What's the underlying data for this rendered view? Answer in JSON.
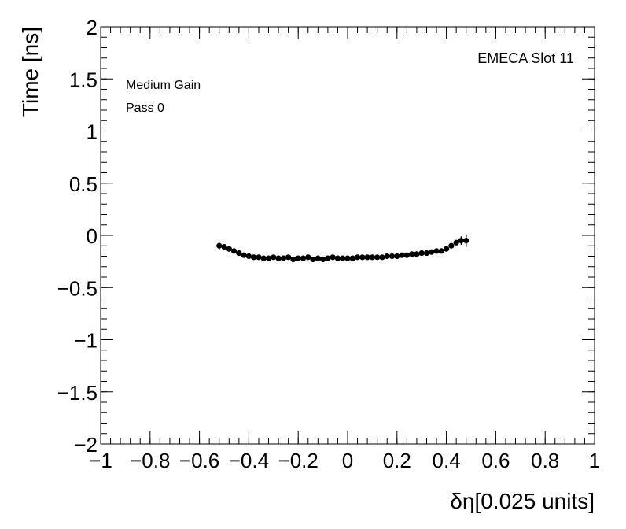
{
  "chart_data": {
    "type": "scatter",
    "title": "",
    "xlabel": "δη[0.025 units]",
    "ylabel": "Time [ns]",
    "xlim": [
      -1,
      1
    ],
    "ylim": [
      -2,
      2
    ],
    "x_major_ticks": [
      -1,
      -0.8,
      -0.6,
      -0.4,
      -0.2,
      0,
      0.2,
      0.4,
      0.6,
      0.8,
      1
    ],
    "x_tick_labels": [
      "−1",
      "−0.8",
      "−0.6",
      "−0.4",
      "−0.2",
      "0",
      "0.2",
      "0.4",
      "0.6",
      "0.8",
      "1"
    ],
    "y_major_ticks": [
      -2,
      -1.5,
      -1,
      -0.5,
      0,
      0.5,
      1,
      1.5,
      2
    ],
    "y_tick_labels": [
      "−2",
      "−1.5",
      "−1",
      "−0.5",
      "0",
      "0.5",
      "1",
      "1.5",
      "2"
    ],
    "x_minor_step": 0.04,
    "y_minor_step": 0.1,
    "annotations": [
      "Medium Gain",
      "Pass 0",
      "EMECA Slot 11"
    ],
    "marker_color": "#000000",
    "grid": false,
    "series": [
      {
        "x": [
          -0.52,
          -0.5,
          -0.48,
          -0.46,
          -0.44,
          -0.42,
          -0.4,
          -0.38,
          -0.36,
          -0.34,
          -0.32,
          -0.3,
          -0.28,
          -0.26,
          -0.24,
          -0.22,
          -0.2,
          -0.18,
          -0.16,
          -0.14,
          -0.12,
          -0.1,
          -0.08,
          -0.06,
          -0.04,
          -0.02,
          0,
          0.02,
          0.04,
          0.06,
          0.08,
          0.1,
          0.12,
          0.14,
          0.16,
          0.18,
          0.2,
          0.22,
          0.24,
          0.26,
          0.28,
          0.3,
          0.32,
          0.34,
          0.36,
          0.38,
          0.4,
          0.42,
          0.44,
          0.46,
          0.48
        ],
        "y": [
          -0.1,
          -0.11,
          -0.13,
          -0.15,
          -0.17,
          -0.19,
          -0.2,
          -0.21,
          -0.21,
          -0.22,
          -0.22,
          -0.21,
          -0.22,
          -0.22,
          -0.21,
          -0.23,
          -0.22,
          -0.22,
          -0.21,
          -0.23,
          -0.22,
          -0.23,
          -0.22,
          -0.21,
          -0.22,
          -0.22,
          -0.22,
          -0.22,
          -0.21,
          -0.21,
          -0.21,
          -0.21,
          -0.21,
          -0.21,
          -0.2,
          -0.2,
          -0.2,
          -0.19,
          -0.19,
          -0.18,
          -0.18,
          -0.17,
          -0.17,
          -0.16,
          -0.15,
          -0.15,
          -0.13,
          -0.1,
          -0.07,
          -0.05,
          -0.05
        ],
        "yerr": [
          0.04,
          0.02,
          0.02,
          0.02,
          0.02,
          0.02,
          0.02,
          0.02,
          0.02,
          0.02,
          0.02,
          0.02,
          0.02,
          0.02,
          0.02,
          0.02,
          0.02,
          0.02,
          0.02,
          0.02,
          0.02,
          0.02,
          0.02,
          0.02,
          0.02,
          0.02,
          0.02,
          0.02,
          0.02,
          0.02,
          0.02,
          0.02,
          0.02,
          0.02,
          0.02,
          0.02,
          0.02,
          0.02,
          0.02,
          0.02,
          0.02,
          0.02,
          0.02,
          0.02,
          0.02,
          0.02,
          0.02,
          0.02,
          0.02,
          0.04,
          0.06
        ],
        "xerr": [
          0.01,
          0.01,
          0.01,
          0.01,
          0.01,
          0.01,
          0.01,
          0.01,
          0.01,
          0.01,
          0.01,
          0.01,
          0.01,
          0.01,
          0.01,
          0.01,
          0.01,
          0.01,
          0.01,
          0.01,
          0.01,
          0.01,
          0.01,
          0.01,
          0.01,
          0.01,
          0.01,
          0.01,
          0.01,
          0.01,
          0.01,
          0.01,
          0.01,
          0.01,
          0.01,
          0.01,
          0.01,
          0.01,
          0.01,
          0.01,
          0.01,
          0.01,
          0.01,
          0.01,
          0.01,
          0.01,
          0.01,
          0.01,
          0.01,
          0.01,
          0.01
        ]
      }
    ]
  }
}
